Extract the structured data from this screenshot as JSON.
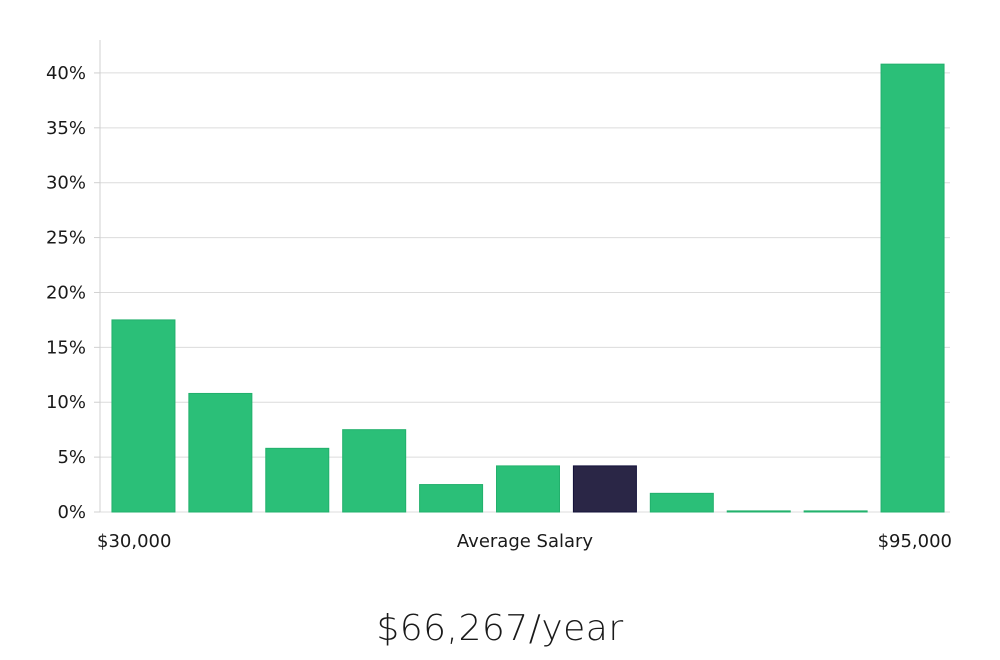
{
  "chart_data": {
    "type": "bar",
    "categories": [
      "1",
      "2",
      "3",
      "4",
      "5",
      "6",
      "7",
      "8",
      "9",
      "10",
      "11"
    ],
    "values": [
      17.5,
      10.8,
      5.8,
      7.5,
      2.5,
      4.2,
      4.2,
      1.7,
      0.1,
      0.1,
      40.8
    ],
    "highlight_index": 6,
    "ylim": [
      0,
      43
    ],
    "yticks": [
      0,
      5,
      10,
      15,
      20,
      25,
      30,
      35,
      40
    ],
    "ytick_suffix": "%",
    "grid": true,
    "xlabel_left": "$30,000",
    "xlabel_center": "Average Salary",
    "xlabel_right": "$95,000",
    "colors": {
      "bar": "#2bbf78",
      "bar_stroke": "#22b06c",
      "highlight": "#2a2646",
      "highlight_stroke": "#13113a",
      "grid": "#dcdcdc",
      "axis": "#d0d0d0"
    }
  },
  "salary": {
    "value": "$66,267/year"
  }
}
